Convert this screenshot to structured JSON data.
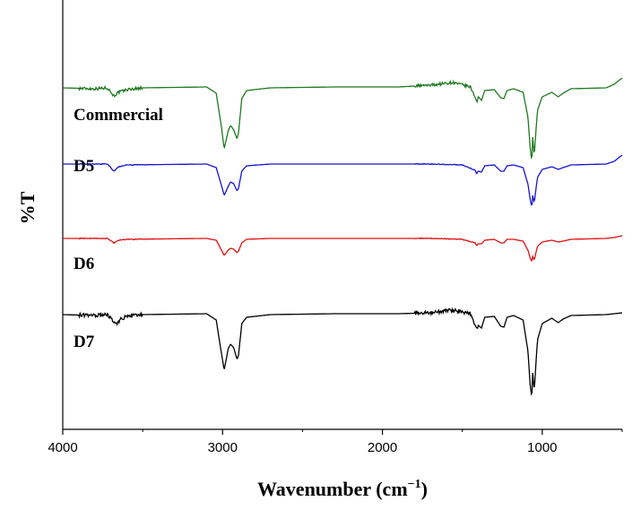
{
  "chart_data": {
    "type": "line",
    "title": "",
    "xlabel": "Wavenumber (cm",
    "xlabel_superscript": "−1",
    "xlabel_close": ")",
    "ylabel": "%T",
    "xlim": [
      4000,
      500
    ],
    "x_reversed": true,
    "x_ticks": [
      "4000",
      "3000",
      "2000",
      "1000"
    ],
    "x_tick_values": [
      4000,
      3000,
      2000,
      1000
    ],
    "grid": false,
    "legend": "labels placed next to each trace on the left",
    "baseline_note": "traces are vertically offset; y values are relative transmittance",
    "series": [
      {
        "name": "Commercial",
        "color": "#1f7a1f",
        "noise": 0.8,
        "points": [
          [
            4000,
            0
          ],
          [
            3800,
            -1
          ],
          [
            3720,
            0
          ],
          [
            3680,
            -9
          ],
          [
            3650,
            -5
          ],
          [
            3600,
            -2
          ],
          [
            3500,
            0
          ],
          [
            3100,
            1
          ],
          [
            3040,
            -6
          ],
          [
            3010,
            -40
          ],
          [
            2990,
            -68
          ],
          [
            2965,
            -48
          ],
          [
            2950,
            -42
          ],
          [
            2930,
            -47
          ],
          [
            2910,
            -57
          ],
          [
            2900,
            -50
          ],
          [
            2880,
            -12
          ],
          [
            2850,
            -3
          ],
          [
            2700,
            0
          ],
          [
            2300,
            1
          ],
          [
            1900,
            1
          ],
          [
            1700,
            3
          ],
          [
            1560,
            6
          ],
          [
            1450,
            1
          ],
          [
            1420,
            -10
          ],
          [
            1410,
            -16
          ],
          [
            1400,
            -10
          ],
          [
            1380,
            -14
          ],
          [
            1360,
            -3
          ],
          [
            1300,
            -2
          ],
          [
            1260,
            -11
          ],
          [
            1240,
            -12
          ],
          [
            1220,
            -3
          ],
          [
            1180,
            -1
          ],
          [
            1120,
            -5
          ],
          [
            1090,
            -32
          ],
          [
            1075,
            -68
          ],
          [
            1065,
            -82
          ],
          [
            1060,
            -55
          ],
          [
            1050,
            -75
          ],
          [
            1030,
            -25
          ],
          [
            1000,
            -10
          ],
          [
            940,
            -5
          ],
          [
            900,
            -10
          ],
          [
            870,
            -6
          ],
          [
            820,
            -1
          ],
          [
            600,
            0
          ],
          [
            550,
            4
          ],
          [
            500,
            11
          ]
        ]
      },
      {
        "name": "D5",
        "color": "#1414d2",
        "noise": 0.2,
        "points": [
          [
            4000,
            0
          ],
          [
            3720,
            0
          ],
          [
            3680,
            -8
          ],
          [
            3650,
            -3
          ],
          [
            3600,
            -1
          ],
          [
            3100,
            0
          ],
          [
            3040,
            -4
          ],
          [
            3010,
            -22
          ],
          [
            2990,
            -35
          ],
          [
            2965,
            -25
          ],
          [
            2950,
            -20
          ],
          [
            2930,
            -22
          ],
          [
            2910,
            -30
          ],
          [
            2900,
            -27
          ],
          [
            2880,
            -8
          ],
          [
            2850,
            -2
          ],
          [
            2700,
            0
          ],
          [
            1700,
            0
          ],
          [
            1500,
            -1
          ],
          [
            1420,
            -7
          ],
          [
            1410,
            -11
          ],
          [
            1400,
            -8
          ],
          [
            1380,
            -9
          ],
          [
            1360,
            -2
          ],
          [
            1300,
            -1
          ],
          [
            1260,
            -8
          ],
          [
            1240,
            -8
          ],
          [
            1220,
            -2
          ],
          [
            1180,
            -1
          ],
          [
            1120,
            -4
          ],
          [
            1090,
            -22
          ],
          [
            1075,
            -40
          ],
          [
            1065,
            -48
          ],
          [
            1060,
            -35
          ],
          [
            1050,
            -43
          ],
          [
            1030,
            -15
          ],
          [
            1000,
            -6
          ],
          [
            940,
            -3
          ],
          [
            900,
            -6
          ],
          [
            870,
            -4
          ],
          [
            820,
            -1
          ],
          [
            600,
            0
          ],
          [
            550,
            3
          ],
          [
            500,
            10
          ]
        ]
      },
      {
        "name": "D6",
        "color": "#e01010",
        "noise": 0.2,
        "points": [
          [
            4000,
            0
          ],
          [
            3720,
            0
          ],
          [
            3680,
            -5
          ],
          [
            3650,
            -2
          ],
          [
            3600,
            -1
          ],
          [
            3100,
            0
          ],
          [
            3040,
            -2
          ],
          [
            3010,
            -12
          ],
          [
            2990,
            -19
          ],
          [
            2965,
            -13
          ],
          [
            2950,
            -11
          ],
          [
            2930,
            -12
          ],
          [
            2910,
            -16
          ],
          [
            2900,
            -14
          ],
          [
            2880,
            -5
          ],
          [
            2850,
            -1
          ],
          [
            2700,
            0
          ],
          [
            1700,
            0
          ],
          [
            1500,
            -1
          ],
          [
            1420,
            -5
          ],
          [
            1410,
            -8
          ],
          [
            1400,
            -6
          ],
          [
            1380,
            -6
          ],
          [
            1360,
            -2
          ],
          [
            1300,
            -1
          ],
          [
            1260,
            -5
          ],
          [
            1240,
            -5
          ],
          [
            1220,
            -1
          ],
          [
            1180,
            -1
          ],
          [
            1120,
            -3
          ],
          [
            1090,
            -13
          ],
          [
            1075,
            -22
          ],
          [
            1065,
            -26
          ],
          [
            1060,
            -20
          ],
          [
            1050,
            -24
          ],
          [
            1030,
            -9
          ],
          [
            1000,
            -4
          ],
          [
            940,
            -2
          ],
          [
            900,
            -4
          ],
          [
            870,
            -3
          ],
          [
            820,
            -1
          ],
          [
            600,
            0
          ],
          [
            550,
            1
          ],
          [
            500,
            3
          ]
        ]
      },
      {
        "name": "D7",
        "color": "#000000",
        "noise": 1.0,
        "points": [
          [
            4000,
            0
          ],
          [
            3800,
            -1
          ],
          [
            3720,
            0
          ],
          [
            3680,
            -8
          ],
          [
            3660,
            -11
          ],
          [
            3640,
            -5
          ],
          [
            3600,
            -2
          ],
          [
            3500,
            0
          ],
          [
            3100,
            1
          ],
          [
            3040,
            -6
          ],
          [
            3010,
            -40
          ],
          [
            2990,
            -62
          ],
          [
            2965,
            -38
          ],
          [
            2950,
            -33
          ],
          [
            2930,
            -37
          ],
          [
            2910,
            -50
          ],
          [
            2900,
            -45
          ],
          [
            2880,
            -10
          ],
          [
            2850,
            -3
          ],
          [
            2700,
            0
          ],
          [
            2300,
            1
          ],
          [
            1900,
            1
          ],
          [
            1700,
            2
          ],
          [
            1560,
            5
          ],
          [
            1450,
            1
          ],
          [
            1420,
            -11
          ],
          [
            1410,
            -17
          ],
          [
            1400,
            -12
          ],
          [
            1380,
            -15
          ],
          [
            1360,
            -3
          ],
          [
            1300,
            -2
          ],
          [
            1260,
            -13
          ],
          [
            1240,
            -14
          ],
          [
            1220,
            -3
          ],
          [
            1180,
            -1
          ],
          [
            1120,
            -6
          ],
          [
            1090,
            -40
          ],
          [
            1075,
            -80
          ],
          [
            1065,
            -92
          ],
          [
            1060,
            -65
          ],
          [
            1050,
            -85
          ],
          [
            1030,
            -28
          ],
          [
            1000,
            -10
          ],
          [
            940,
            -4
          ],
          [
            900,
            -9
          ],
          [
            870,
            -5
          ],
          [
            820,
            -1
          ],
          [
            600,
            0
          ],
          [
            550,
            1
          ],
          [
            500,
            2
          ]
        ]
      }
    ]
  }
}
